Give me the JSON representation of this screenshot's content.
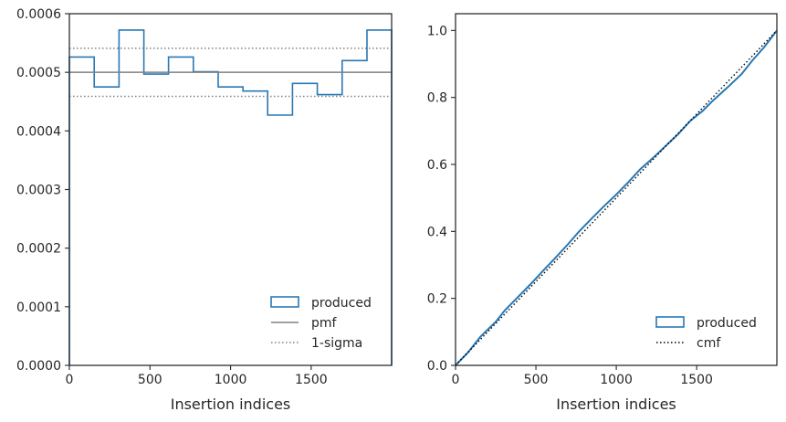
{
  "chart_data": [
    {
      "type": "step",
      "xlabel": "Insertion indices",
      "ylabel": "",
      "xlim": [
        0,
        1999
      ],
      "ylim": [
        0,
        0.0006
      ],
      "x_ticks": [
        0,
        500,
        1000,
        1500
      ],
      "y_ticks": [
        "0.0000",
        "0.0001",
        "0.0002",
        "0.0003",
        "0.0004",
        "0.0005",
        "0.0006"
      ],
      "y_tick_values": [
        0,
        0.0001,
        0.0002,
        0.0003,
        0.0004,
        0.0005,
        0.0006
      ],
      "bin_edges": [
        0,
        154,
        308,
        462,
        615,
        769,
        923,
        1077,
        1230,
        1384,
        1538,
        1692,
        1846,
        1999
      ],
      "series": [
        {
          "name": "produced",
          "color": "#2878b5",
          "style": "step",
          "values": [
            0.000526,
            0.000475,
            0.000572,
            0.000497,
            0.000526,
            0.000501,
            0.000475,
            0.000468,
            0.000427,
            0.000481,
            0.000462,
            0.00052,
            0.000572
          ]
        },
        {
          "name": "pmf",
          "color": "#808080",
          "style": "solid",
          "value": 0.0005
        },
        {
          "name": "1-sigma",
          "color": "#808080",
          "style": "dotted",
          "values": [
            0.000541,
            0.000459
          ]
        }
      ],
      "legend": {
        "position": "lower right",
        "entries": [
          "produced",
          "pmf",
          "1-sigma"
        ]
      },
      "grid": false
    },
    {
      "type": "line",
      "xlabel": "Insertion indices",
      "ylabel": "",
      "xlim": [
        0,
        1999
      ],
      "ylim": [
        0,
        1.05
      ],
      "x_ticks": [
        0,
        500,
        1000,
        1500
      ],
      "y_ticks": [
        "0.0",
        "0.2",
        "0.4",
        "0.6",
        "0.8",
        "1.0"
      ],
      "y_tick_values": [
        0,
        0.2,
        0.4,
        0.6,
        0.8,
        1.0
      ],
      "series": [
        {
          "name": "produced",
          "color": "#2878b5",
          "style": "solid",
          "x": [
            0,
            80,
            154,
            250,
            308,
            380,
            462,
            540,
            615,
            700,
            769,
            850,
            923,
            1000,
            1077,
            1150,
            1230,
            1300,
            1384,
            1460,
            1538,
            1600,
            1692,
            1780,
            1846,
            1920,
            1999
          ],
          "y": [
            0,
            0.04,
            0.085,
            0.13,
            0.165,
            0.2,
            0.24,
            0.28,
            0.318,
            0.362,
            0.4,
            0.44,
            0.475,
            0.51,
            0.548,
            0.586,
            0.62,
            0.652,
            0.69,
            0.73,
            0.76,
            0.79,
            0.83,
            0.87,
            0.91,
            0.95,
            1.0
          ]
        },
        {
          "name": "cmf",
          "color": "#000000",
          "style": "dotted",
          "x": [
            0,
            1999
          ],
          "y": [
            0,
            1.0
          ]
        }
      ],
      "legend": {
        "position": "lower right",
        "entries": [
          "produced",
          "cmf"
        ]
      },
      "grid": false
    }
  ]
}
